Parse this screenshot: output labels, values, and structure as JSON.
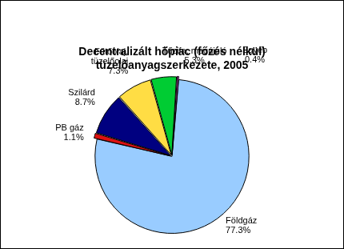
{
  "chart_data": {
    "type": "pie",
    "title": [
      "Decentralizált hőpiac (főzés nélkül)",
      "tüzelőanyagszerkezete, 2005"
    ],
    "categories": [
      "Földgáz",
      "PB gáz",
      "Szilárd",
      "Fűtőolaj,\ntüzelőolaj",
      "Tűzifa, megújuló",
      "Egyéb"
    ],
    "values": [
      77.3,
      1.1,
      8.7,
      7.3,
      5.3,
      0.4
    ],
    "value_labels": [
      "77.3%",
      "1.1%",
      "8.7%",
      "7.3%",
      "5.3%",
      "0.4%"
    ],
    "colors": [
      "#99ccff",
      "#dd1111",
      "#000080",
      "#ffdd44",
      "#00cc33",
      "#cc44cc"
    ],
    "data_labels": true
  }
}
